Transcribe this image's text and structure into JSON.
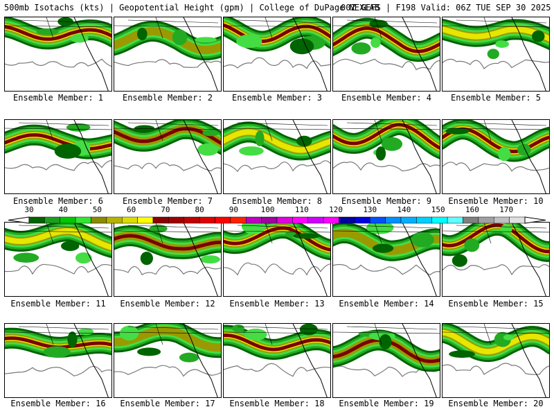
{
  "header": {
    "left_text": "500mb Isotachs (kts) | Geopotential Height (gpm) | College of DuPage NEXLAB",
    "right_text": "00Z GEFS | F198 Valid: 06Z TUE SEP 30 2025"
  },
  "panels": [
    {
      "caption": "Ensemble Member: 1"
    },
    {
      "caption": "Ensemble Member: 2"
    },
    {
      "caption": "Ensemble Member: 3"
    },
    {
      "caption": "Ensemble Member: 4"
    },
    {
      "caption": "Ensemble Member: 5"
    },
    {
      "caption": "Ensemble Member: 6"
    },
    {
      "caption": "Ensemble Member: 7"
    },
    {
      "caption": "Ensemble Member: 8"
    },
    {
      "caption": "Ensemble Member: 9"
    },
    {
      "caption": "Ensemble Member: 10"
    },
    {
      "caption": "Ensemble Member: 11"
    },
    {
      "caption": "Ensemble Member: 12"
    },
    {
      "caption": "Ensemble Member: 13"
    },
    {
      "caption": "Ensemble Member: 14"
    },
    {
      "caption": "Ensemble Member: 15"
    },
    {
      "caption": "Ensemble Member: 16"
    },
    {
      "caption": "Ensemble Member: 17"
    },
    {
      "caption": "Ensemble Member: 18"
    },
    {
      "caption": "Ensemble Member: 19"
    },
    {
      "caption": "Ensemble Member: 20"
    }
  ],
  "colorbar": {
    "labels": [
      "30",
      "40",
      "50",
      "60",
      "70",
      "80",
      "90",
      "100",
      "110",
      "120",
      "130",
      "140",
      "150",
      "160",
      "170"
    ],
    "colors": [
      "#006400",
      "#1e9e1e",
      "#00c800",
      "#32e632",
      "#8b8b00",
      "#b4b400",
      "#dcdc00",
      "#ffff00",
      "#8b0000",
      "#a00000",
      "#c00000",
      "#e00000",
      "#ff0000",
      "#ff2000",
      "#c000c0",
      "#a000a0",
      "#e000e0",
      "#ff00ff",
      "#d000ff",
      "#ff00ff",
      "#0000a0",
      "#0000e0",
      "#0050ff",
      "#0090ff",
      "#00b0ff",
      "#00d0ff",
      "#00ffff",
      "#60ffff",
      "#808080",
      "#a0a0a0",
      "#c0c0c0",
      "#e0e0e0"
    ],
    "pal": {
      "dkgreen": "#006400",
      "green": "#22aa22",
      "ltgreen": "#44dd44",
      "olive": "#9a9a00",
      "yellow": "#e6e600",
      "dkred": "#7a0000",
      "red": "#c00000",
      "purple": "#7000a0",
      "blue": "#2020d0"
    }
  }
}
